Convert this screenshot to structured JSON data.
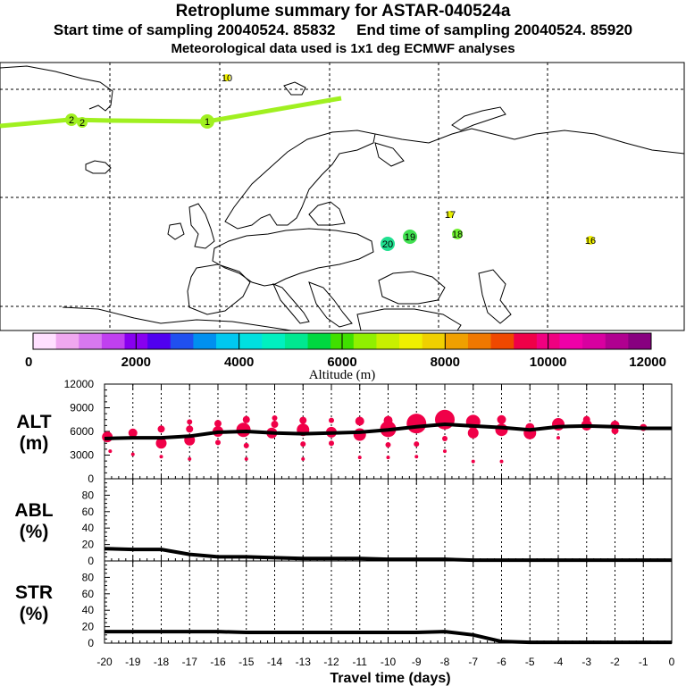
{
  "header": {
    "title": "Retroplume summary for ASTAR-040524a",
    "start_label": "Start time of sampling 20040524. 85832",
    "end_label": "End time of sampling 20040524. 85920",
    "met_label": "Meteorological data used is 1x1 deg ECMWF analyses"
  },
  "colorbar": {
    "colors": [
      "#ffe0ff",
      "#f0a8f0",
      "#d878f0",
      "#c040f0",
      "#8800f0",
      "#5000f0",
      "#2050f0",
      "#0090f0",
      "#00c8f0",
      "#00e0e0",
      "#00f0c0",
      "#00e890",
      "#00d840",
      "#40e000",
      "#90f000",
      "#c8f000",
      "#f0f000",
      "#f0d000",
      "#f0a000",
      "#f07800",
      "#f04800",
      "#f00048",
      "#f00080",
      "#f000a8",
      "#d800a0",
      "#b00090",
      "#880080"
    ],
    "tick_labels": [
      "0",
      "2000",
      "4000",
      "6000",
      "8000",
      "10000",
      "12000"
    ],
    "label": "Altitude (m)"
  },
  "map": {
    "trajectory_color": "#a0f020",
    "clusters": [
      {
        "label": "2",
        "altitude_color": "#a0f020"
      },
      {
        "label": "2",
        "altitude_color": "#a0f020"
      },
      {
        "label": "1",
        "altitude_color": "#a0f020"
      },
      {
        "label": "10",
        "altitude_color": "#f0f000"
      },
      {
        "label": "17",
        "altitude_color": "#e8f000"
      },
      {
        "label": "18",
        "altitude_color": "#70f030"
      },
      {
        "label": "19",
        "altitude_color": "#40e050"
      },
      {
        "label": "20",
        "altitude_color": "#20e090"
      },
      {
        "label": "16",
        "altitude_color": "#f0f000"
      }
    ]
  },
  "chart_data": [
    {
      "type": "line",
      "name": "ALT",
      "ylabel_lines": [
        "ALT",
        "(m)"
      ],
      "x": [
        -20,
        -19,
        -18,
        -17,
        -16,
        -15,
        -14,
        -13,
        -12,
        -11,
        -10,
        -9,
        -8,
        -7,
        -6,
        -5,
        -4,
        -3,
        -2,
        -1,
        0
      ],
      "y": [
        5100,
        5200,
        5200,
        5400,
        5900,
        6000,
        5800,
        5700,
        5800,
        5900,
        6200,
        6600,
        6900,
        6700,
        6500,
        6200,
        6600,
        6700,
        6600,
        6400,
        6400
      ],
      "ylim": [
        0,
        12000
      ],
      "yticks": [
        "0",
        "3000",
        "6000",
        "9000",
        "12000"
      ],
      "bubble_color": "#f00048"
    },
    {
      "type": "line",
      "name": "ABL",
      "ylabel_lines": [
        "ABL",
        "(%)"
      ],
      "x": [
        -20,
        -19,
        -18,
        -17,
        -16,
        -15,
        -14,
        -13,
        -12,
        -11,
        -10,
        -9,
        -8,
        -7,
        -6,
        -5,
        -4,
        -3,
        -2,
        -1,
        0
      ],
      "y": [
        15,
        14,
        14,
        8,
        5,
        5,
        4,
        3,
        3,
        3,
        2,
        2,
        2,
        1,
        1,
        1,
        1,
        1,
        1,
        1,
        1
      ],
      "ylim": [
        0,
        100
      ],
      "yticks": [
        "0",
        "20",
        "40",
        "60",
        "80"
      ]
    },
    {
      "type": "line",
      "name": "STR",
      "ylabel_lines": [
        "STR",
        "(%)"
      ],
      "x": [
        -20,
        -19,
        -18,
        -17,
        -16,
        -15,
        -14,
        -13,
        -12,
        -11,
        -10,
        -9,
        -8,
        -7,
        -6,
        -5,
        -4,
        -3,
        -2,
        -1,
        0
      ],
      "y": [
        14,
        14,
        14,
        14,
        14,
        13,
        13,
        13,
        13,
        13,
        13,
        13,
        14,
        10,
        2,
        1,
        1,
        1,
        1,
        1,
        1
      ],
      "ylim": [
        0,
        100
      ],
      "yticks": [
        "0",
        "20",
        "40",
        "60",
        "80"
      ],
      "xlabel": "Travel time (days)",
      "xticks": [
        "-20",
        "-19",
        "-18",
        "-17",
        "-16",
        "-15",
        "-14",
        "-13",
        "-12",
        "-11",
        "-10",
        "-9",
        "-8",
        "-7",
        "-6",
        "-5",
        "-4",
        "-3",
        "-2",
        "-1",
        "0"
      ]
    }
  ]
}
